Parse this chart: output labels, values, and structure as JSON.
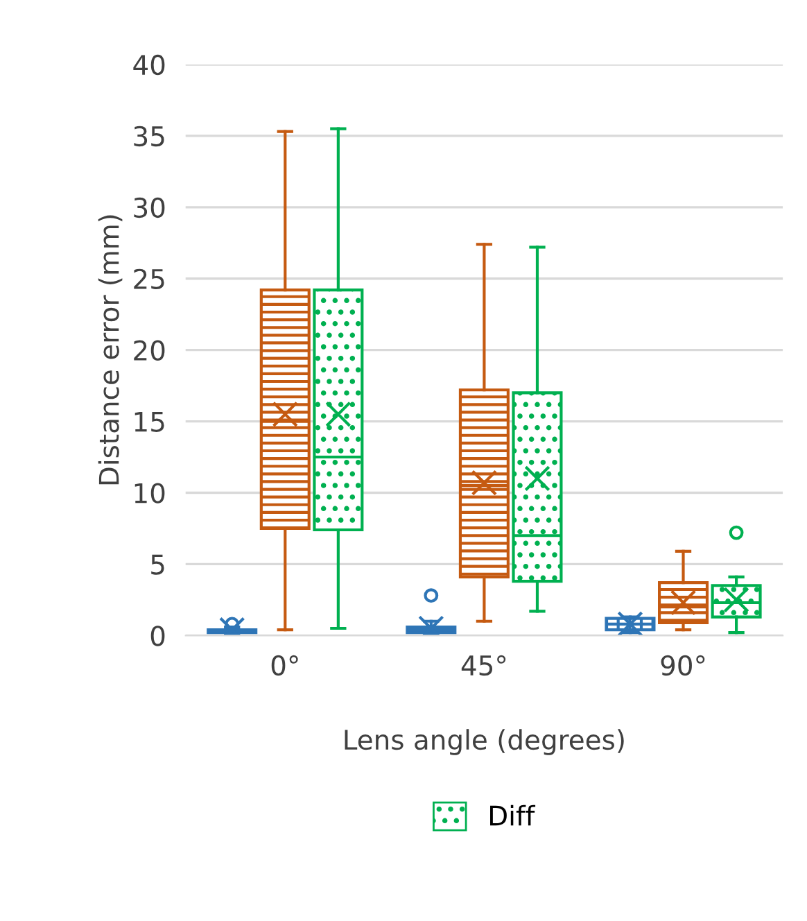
{
  "chart_data": {
    "type": "box",
    "xlabel": "Lens angle (degrees)",
    "ylabel": "Distance error (mm)",
    "categories": [
      "0°",
      "45°",
      "90°"
    ],
    "ylim": [
      0,
      40
    ],
    "yticks": [
      0,
      5,
      10,
      15,
      20,
      25,
      30,
      35,
      40
    ],
    "grid": "y",
    "legend": "bottom",
    "series": [
      {
        "color": "#2e75b6",
        "boxes": [
          {
            "low": 0.1,
            "q1": 0.2,
            "median": 0.3,
            "q3": 0.4,
            "high": 0.6,
            "mean": 0.4,
            "outliers": [
              0.8
            ]
          },
          {
            "low": 0.1,
            "q1": 0.2,
            "median": 0.4,
            "q3": 0.6,
            "high": 1.0,
            "mean": 0.5,
            "outliers": [
              2.8
            ]
          },
          {
            "low": 0.2,
            "q1": 0.4,
            "median": 0.8,
            "q3": 1.2,
            "high": 1.3,
            "mean": 0.8
          }
        ]
      },
      {
        "color": "#c55a11",
        "boxes": [
          {
            "low": 0.4,
            "q1": 7.5,
            "median": 15,
            "q3": 24.2,
            "high": 35.3,
            "mean": 15.5
          },
          {
            "low": 1.0,
            "q1": 4.1,
            "median": 10.5,
            "q3": 17.2,
            "high": 27.4,
            "mean": 10.7
          },
          {
            "low": 0.4,
            "q1": 0.9,
            "median": 2.0,
            "q3": 3.7,
            "high": 5.9,
            "mean": 2.3
          }
        ]
      },
      {
        "name": "Diff",
        "color": "#00b050",
        "boxes": [
          {
            "low": 0.5,
            "q1": 7.4,
            "median": 12.5,
            "q3": 24.2,
            "high": 35.5,
            "mean": 15.5
          },
          {
            "low": 1.7,
            "q1": 3.8,
            "median": 7.0,
            "q3": 17.0,
            "high": 27.2,
            "mean": 11.0
          },
          {
            "low": 0.2,
            "q1": 1.3,
            "median": 2.3,
            "q3": 3.5,
            "high": 4.1,
            "mean": 2.5,
            "outliers": [
              7.2
            ]
          }
        ]
      }
    ]
  }
}
